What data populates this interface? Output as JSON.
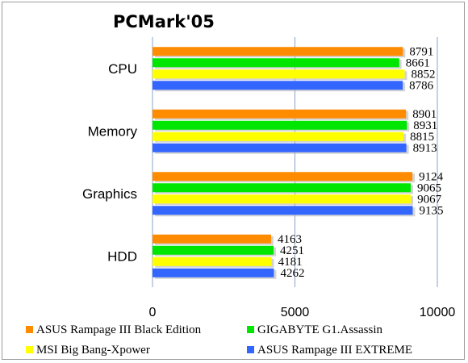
{
  "chart_data": {
    "type": "bar",
    "orientation": "horizontal",
    "title": "PCMark'05",
    "categories": [
      "CPU",
      "Memory",
      "Graphics",
      "HDD"
    ],
    "series": [
      {
        "name": "ASUS Rampage III Black Edition",
        "color": "#ff8c00",
        "values": [
          8791,
          8901,
          9124,
          4163
        ]
      },
      {
        "name": "GIGABYTE G1.Assassin",
        "color": "#00e600",
        "values": [
          8661,
          8931,
          9065,
          4251
        ]
      },
      {
        "name": "MSI Big Bang-Xpower",
        "color": "#ffff00",
        "values": [
          8852,
          8815,
          9067,
          4181
        ]
      },
      {
        "name": "ASUS Rampage III EXTREME",
        "color": "#3366ff",
        "values": [
          8786,
          8913,
          9135,
          4262
        ]
      }
    ],
    "xlim": [
      0,
      10000
    ],
    "xticks": [
      "0",
      "5000",
      "10000"
    ],
    "grid": true,
    "legend_position": "bottom"
  }
}
